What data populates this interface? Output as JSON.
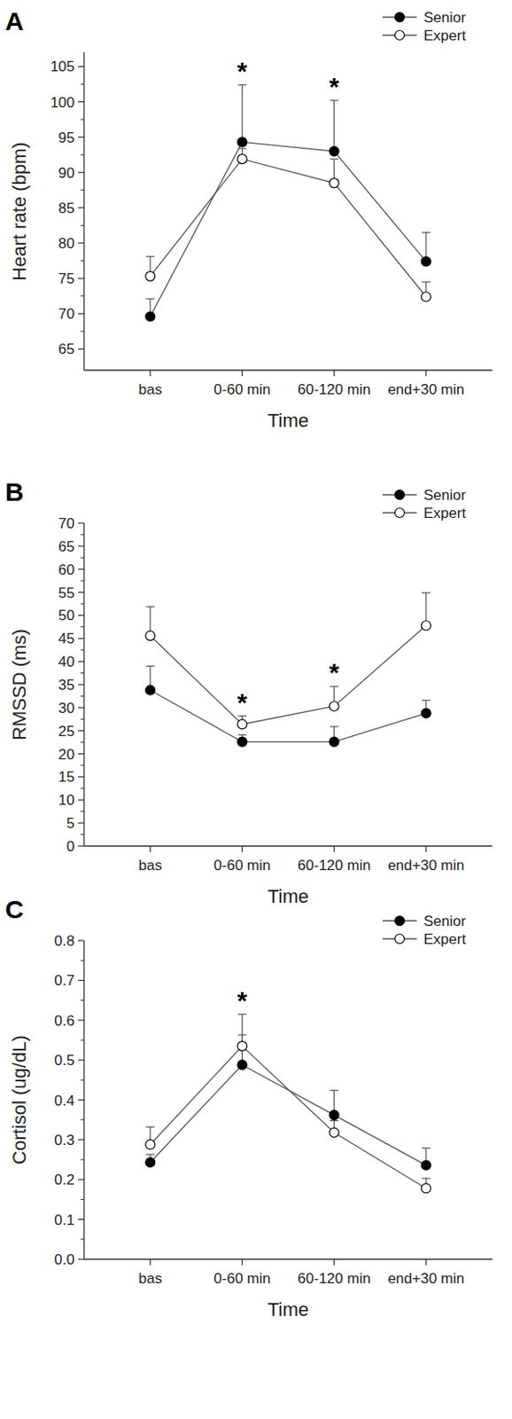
{
  "chart_data": [
    {
      "type": "line",
      "title": "A",
      "xlabel": "Time",
      "ylabel": "Heart rate (bpm)",
      "categories": [
        "bas",
        "0-60 min",
        "60-120 min",
        "end+30 min"
      ],
      "series": [
        {
          "name": "Senior",
          "color": "#000000",
          "marker": "filled_circle",
          "values": [
            69.6,
            94.3,
            93.0,
            77.4
          ],
          "errors": [
            2.5,
            8.1,
            7.2,
            4.1
          ]
        },
        {
          "name": "Expert",
          "color": "#000000",
          "marker": "open_circle",
          "values": [
            75.3,
            91.9,
            88.5,
            72.4
          ],
          "errors": [
            2.8,
            1.5,
            3.4,
            2.1
          ]
        }
      ],
      "ylim": [
        62,
        107
      ],
      "yticks": [
        65,
        70,
        75,
        80,
        85,
        90,
        95,
        100,
        105
      ],
      "legend": "upper right",
      "annotations": [
        {
          "text": "*",
          "x": "0-60 min"
        },
        {
          "text": "*",
          "x": "60-120 min"
        }
      ]
    },
    {
      "type": "line",
      "title": "B",
      "xlabel": "Time",
      "ylabel": "RMSSD (ms)",
      "categories": [
        "bas",
        "0-60 min",
        "60-120 min",
        "end+30 min"
      ],
      "series": [
        {
          "name": "Senior",
          "color": "#000000",
          "marker": "filled_circle",
          "values": [
            33.8,
            22.6,
            22.6,
            28.8
          ],
          "errors": [
            5.2,
            1.5,
            3.3,
            2.8
          ]
        },
        {
          "name": "Expert",
          "color": "#000000",
          "marker": "open_circle",
          "values": [
            45.6,
            26.4,
            30.3,
            47.8
          ],
          "errors": [
            6.3,
            1.8,
            4.3,
            7.1
          ]
        }
      ],
      "ylim": [
        0,
        70
      ],
      "yticks": [
        0,
        5,
        10,
        15,
        20,
        25,
        30,
        35,
        40,
        45,
        50,
        55,
        60,
        65,
        70
      ],
      "legend": "upper right",
      "annotations": [
        {
          "text": "*",
          "x": "0-60 min"
        },
        {
          "text": "*",
          "x": "60-120 min"
        }
      ]
    },
    {
      "type": "line",
      "title": "C",
      "xlabel": "Time",
      "ylabel": "Cortisol (ug/dL)",
      "categories": [
        "bas",
        "0-60 min",
        "60-120 min",
        "end+30 min"
      ],
      "series": [
        {
          "name": "Senior",
          "color": "#000000",
          "marker": "filled_circle",
          "values": [
            0.243,
            0.488,
            0.362,
            0.236
          ],
          "errors": [
            0.02,
            0.075,
            0.062,
            0.043
          ]
        },
        {
          "name": "Expert",
          "color": "#000000",
          "marker": "open_circle",
          "values": [
            0.288,
            0.535,
            0.318,
            0.178
          ],
          "errors": [
            0.044,
            0.08,
            0.03,
            0.025
          ]
        }
      ],
      "ylim": [
        0,
        0.8
      ],
      "yticks": [
        {
          "value": 0,
          "label": "0.0"
        },
        0.1,
        0.2,
        0.3,
        0.4,
        0.5,
        0.6,
        0.7,
        0.8
      ],
      "legend": "upper right",
      "annotations": [
        {
          "text": "*",
          "x": "0-60 min"
        }
      ]
    }
  ]
}
